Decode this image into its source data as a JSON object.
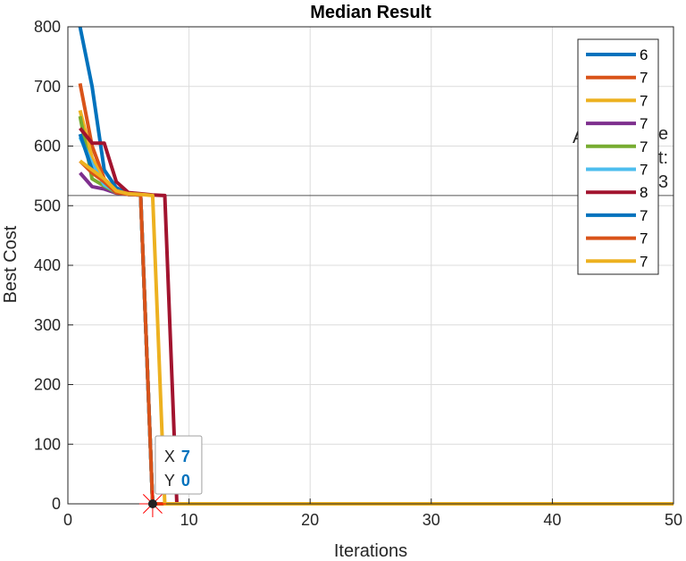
{
  "chart_data": {
    "type": "line",
    "title": "Median Result",
    "xlabel": "Iterations",
    "ylabel": "Best Cost",
    "xlim": [
      0,
      50
    ],
    "ylim": [
      0,
      800
    ],
    "xticks": [
      0,
      10,
      20,
      30,
      40,
      50
    ],
    "yticks": [
      0,
      100,
      200,
      300,
      400,
      500,
      600,
      700,
      800
    ],
    "grid": true,
    "legend_position": "top-right",
    "reference_line_y": 517,
    "occluded_text": [
      "A",
      "e",
      "t:",
      "3"
    ],
    "series": [
      {
        "name": "6",
        "color": "#0072bd",
        "x": [
          1,
          2,
          3,
          4,
          5,
          6,
          7,
          8,
          50
        ],
        "y": [
          800,
          700,
          560,
          530,
          520,
          518,
          0,
          0,
          0
        ]
      },
      {
        "name": "7",
        "color": "#d95319",
        "x": [
          1,
          2,
          3,
          4,
          5,
          6,
          7,
          8,
          50
        ],
        "y": [
          705,
          600,
          545,
          525,
          519,
          518,
          0,
          0,
          0
        ]
      },
      {
        "name": "7",
        "color": "#edb120",
        "x": [
          1,
          2,
          3,
          4,
          5,
          6,
          7,
          8,
          50
        ],
        "y": [
          660,
          580,
          540,
          522,
          519,
          518,
          0,
          0,
          0
        ]
      },
      {
        "name": "7",
        "color": "#7e2f8e",
        "x": [
          1,
          2,
          3,
          4,
          5,
          6,
          7,
          8,
          50
        ],
        "y": [
          555,
          532,
          528,
          521,
          519,
          518,
          0,
          0,
          0
        ]
      },
      {
        "name": "7",
        "color": "#77ac30",
        "x": [
          1,
          2,
          3,
          4,
          5,
          6,
          7,
          8,
          50
        ],
        "y": [
          650,
          545,
          533,
          522,
          519,
          518,
          0,
          0,
          0
        ]
      },
      {
        "name": "7",
        "color": "#4dbeee",
        "x": [
          1,
          2,
          3,
          4,
          5,
          6,
          7,
          8,
          50
        ],
        "y": [
          615,
          570,
          535,
          523,
          519,
          518,
          0,
          0,
          0
        ]
      },
      {
        "name": "8",
        "color": "#a2142f",
        "x": [
          1,
          2,
          3,
          4,
          5,
          6,
          7,
          8,
          9,
          50
        ],
        "y": [
          630,
          605,
          605,
          540,
          522,
          520,
          518,
          517,
          0,
          0
        ]
      },
      {
        "name": "7",
        "color": "#0072bd",
        "x": [
          1,
          2,
          3,
          4,
          5,
          6,
          7,
          8,
          50
        ],
        "y": [
          620,
          560,
          540,
          522,
          519,
          518,
          0,
          0,
          0
        ]
      },
      {
        "name": "7",
        "color": "#d95319",
        "x": [
          1,
          2,
          3,
          4,
          5,
          6,
          7,
          8,
          50
        ],
        "y": [
          575,
          555,
          540,
          522,
          519,
          518,
          0,
          0,
          0
        ]
      },
      {
        "name": "7",
        "color": "#edb120",
        "x": [
          1,
          2,
          3,
          4,
          5,
          6,
          7,
          8,
          50
        ],
        "y": [
          575,
          560,
          545,
          525,
          520,
          519,
          517,
          0,
          0
        ]
      }
    ],
    "datatip": {
      "x_label": "X",
      "x_value": "7",
      "y_label": "Y",
      "y_value": "0",
      "point": [
        7,
        0
      ]
    }
  }
}
